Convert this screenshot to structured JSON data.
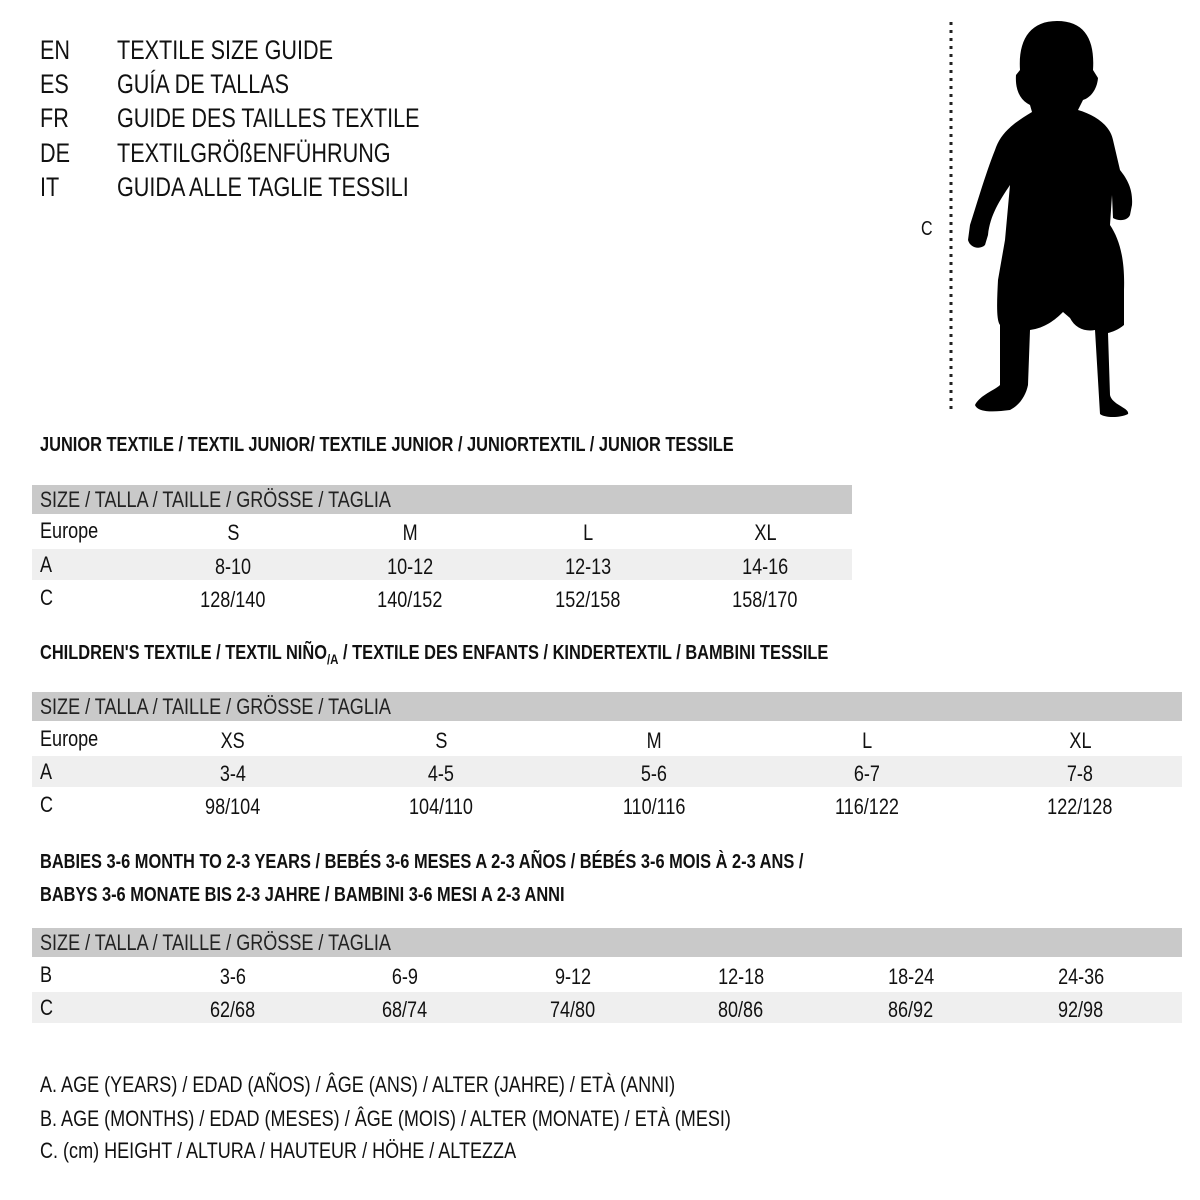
{
  "languages": [
    {
      "code": "EN",
      "title": "TEXTILE SIZE GUIDE"
    },
    {
      "code": "ES",
      "title": "GUÍA DE TALLAS"
    },
    {
      "code": "FR",
      "title": "GUIDE DES TAILLES TEXTILE"
    },
    {
      "code": "DE",
      "title": "TEXTILGRÖßENFÜHRUNG"
    },
    {
      "code": "IT",
      "title": "GUIDA ALLE TAGLIE TESSILI"
    }
  ],
  "figure": {
    "measure_label": "C",
    "icon": "child-silhouette"
  },
  "colors": {
    "header_bar": "#c9c9c9",
    "row_shade": "#efefef",
    "text": "#111111"
  },
  "size_header": "SIZE / TALLA / TAILLE / GRÖSSE / TAGLIA",
  "sections": [
    {
      "title": "JUNIOR TEXTILE / TEXTIL JUNIOR/ TEXTILE JUNIOR / JUNIORTEXTIL / JUNIOR TESSILE",
      "rows": [
        {
          "label": "Europe",
          "values": [
            "S",
            "M",
            "L",
            "XL"
          ]
        },
        {
          "label": "A",
          "values": [
            "8-10",
            "10-12",
            "12-13",
            "14-16"
          ]
        },
        {
          "label": "C",
          "values": [
            "128/140",
            "140/152",
            "152/158",
            "158/170"
          ]
        }
      ]
    },
    {
      "title_parts": [
        "CHILDREN'S TEXTILE / TEXTIL NIÑO",
        "/A",
        " / TEXTILE DES ENFANTS / KINDERTEXTIL / BAMBINI TESSILE"
      ],
      "rows": [
        {
          "label": "Europe",
          "values": [
            "XS",
            "S",
            "M",
            "L",
            "XL"
          ]
        },
        {
          "label": "A",
          "values": [
            "3-4",
            "4-5",
            "5-6",
            "6-7",
            "7-8"
          ]
        },
        {
          "label": "C",
          "values": [
            "98/104",
            "104/110",
            "110/116",
            "116/122",
            "122/128"
          ]
        }
      ]
    },
    {
      "title_lines": [
        "BABIES 3-6 MONTH TO 2-3 YEARS / BEBÉS 3-6 MESES A 2-3 AÑOS / BÉBÉS 3-6 MOIS À 2-3 ANS /",
        "BABYS 3-6 MONATE BIS 2-3 JAHRE / BAMBINI 3-6 MESI A 2-3 ANNI"
      ],
      "rows": [
        {
          "label": "B",
          "values": [
            "3-6",
            "6-9",
            "9-12",
            "12-18",
            "18-24",
            "24-36"
          ]
        },
        {
          "label": "C",
          "values": [
            "62/68",
            "68/74",
            "74/80",
            "80/86",
            "86/92",
            "92/98"
          ]
        }
      ]
    }
  ],
  "legend": [
    "A. AGE (YEARS) / EDAD (AÑOS) / ÂGE (ANS) / ALTER (JAHRE) / ETÀ (ANNI)",
    "B. AGE (MONTHS) / EDAD (MESES) / ÂGE (MOIS) / ALTER (MONATE) / ETÀ (MESI)",
    "C. (cm) HEIGHT / ALTURA / HAUTEUR / HÖHE / ALTEZZA"
  ]
}
